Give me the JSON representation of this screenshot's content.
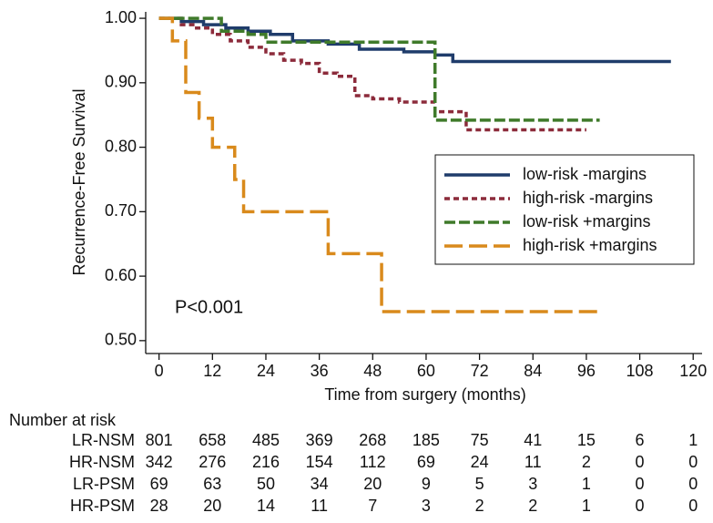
{
  "chart_data": {
    "type": "km",
    "drawstyle": "steps-post",
    "x_label": "Time from surgery (months)",
    "y_label": "Recurrence-Free Survival",
    "annotation": "P<0.001",
    "xlim": [
      -3,
      122
    ],
    "ylim": [
      0.48,
      1.01
    ],
    "xticks": [
      0,
      12,
      24,
      36,
      48,
      60,
      72,
      84,
      96,
      108,
      120
    ],
    "yticks": [
      {
        "value": 0.5,
        "label": "0.50"
      },
      {
        "value": 0.6,
        "label": "0.60"
      },
      {
        "value": 0.7,
        "label": "0.70"
      },
      {
        "value": 0.8,
        "label": "0.80"
      },
      {
        "value": 0.9,
        "label": "0.90"
      },
      {
        "value": 1.0,
        "label": "1.00"
      }
    ],
    "legend": "right",
    "series": [
      {
        "name": "low-risk -margins",
        "color": "#1f3c6b",
        "linestyle": "solid",
        "x": [
          0,
          5,
          10,
          15,
          20,
          25,
          30,
          38,
          45,
          55,
          62,
          66,
          115
        ],
        "values": [
          1.0,
          0.995,
          0.99,
          0.985,
          0.98,
          0.975,
          0.965,
          0.96,
          0.952,
          0.948,
          0.943,
          0.933,
          0.933
        ]
      },
      {
        "name": "high-risk -margins",
        "color": "#8c2b3b",
        "linestyle": "dashed",
        "x": [
          0,
          5,
          8,
          12,
          16,
          20,
          24,
          28,
          32,
          36,
          40,
          44,
          48,
          54,
          62,
          69,
          96
        ],
        "values": [
          1.0,
          0.99,
          0.985,
          0.975,
          0.965,
          0.955,
          0.945,
          0.935,
          0.93,
          0.915,
          0.91,
          0.88,
          0.875,
          0.87,
          0.855,
          0.827,
          0.827
        ]
      },
      {
        "name": "low-risk +margins",
        "color": "#3f7a2a",
        "linestyle": "dashdot",
        "x": [
          0,
          14,
          20,
          24,
          62,
          99
        ],
        "values": [
          1.0,
          0.98,
          0.975,
          0.963,
          0.842,
          0.842
        ]
      },
      {
        "name": "high-risk +margins",
        "color": "#d98a1c",
        "linestyle": "longdash",
        "x": [
          0,
          3,
          6,
          9,
          12,
          17,
          19,
          38,
          50,
          99
        ],
        "values": [
          1.0,
          0.965,
          0.885,
          0.845,
          0.8,
          0.75,
          0.7,
          0.635,
          0.545,
          0.545
        ]
      }
    ],
    "risk_table": {
      "title": "Number at risk",
      "rows": [
        {
          "label": "LR-NSM",
          "values": [
            801,
            658,
            485,
            369,
            268,
            185,
            75,
            41,
            15,
            6,
            1
          ]
        },
        {
          "label": "HR-NSM",
          "values": [
            342,
            276,
            216,
            154,
            112,
            69,
            24,
            11,
            2,
            0,
            0
          ]
        },
        {
          "label": "LR-PSM",
          "values": [
            69,
            63,
            50,
            34,
            20,
            9,
            5,
            3,
            1,
            0,
            0
          ]
        },
        {
          "label": "HR-PSM",
          "values": [
            28,
            20,
            14,
            11,
            7,
            3,
            2,
            2,
            1,
            0,
            0
          ]
        }
      ]
    }
  }
}
